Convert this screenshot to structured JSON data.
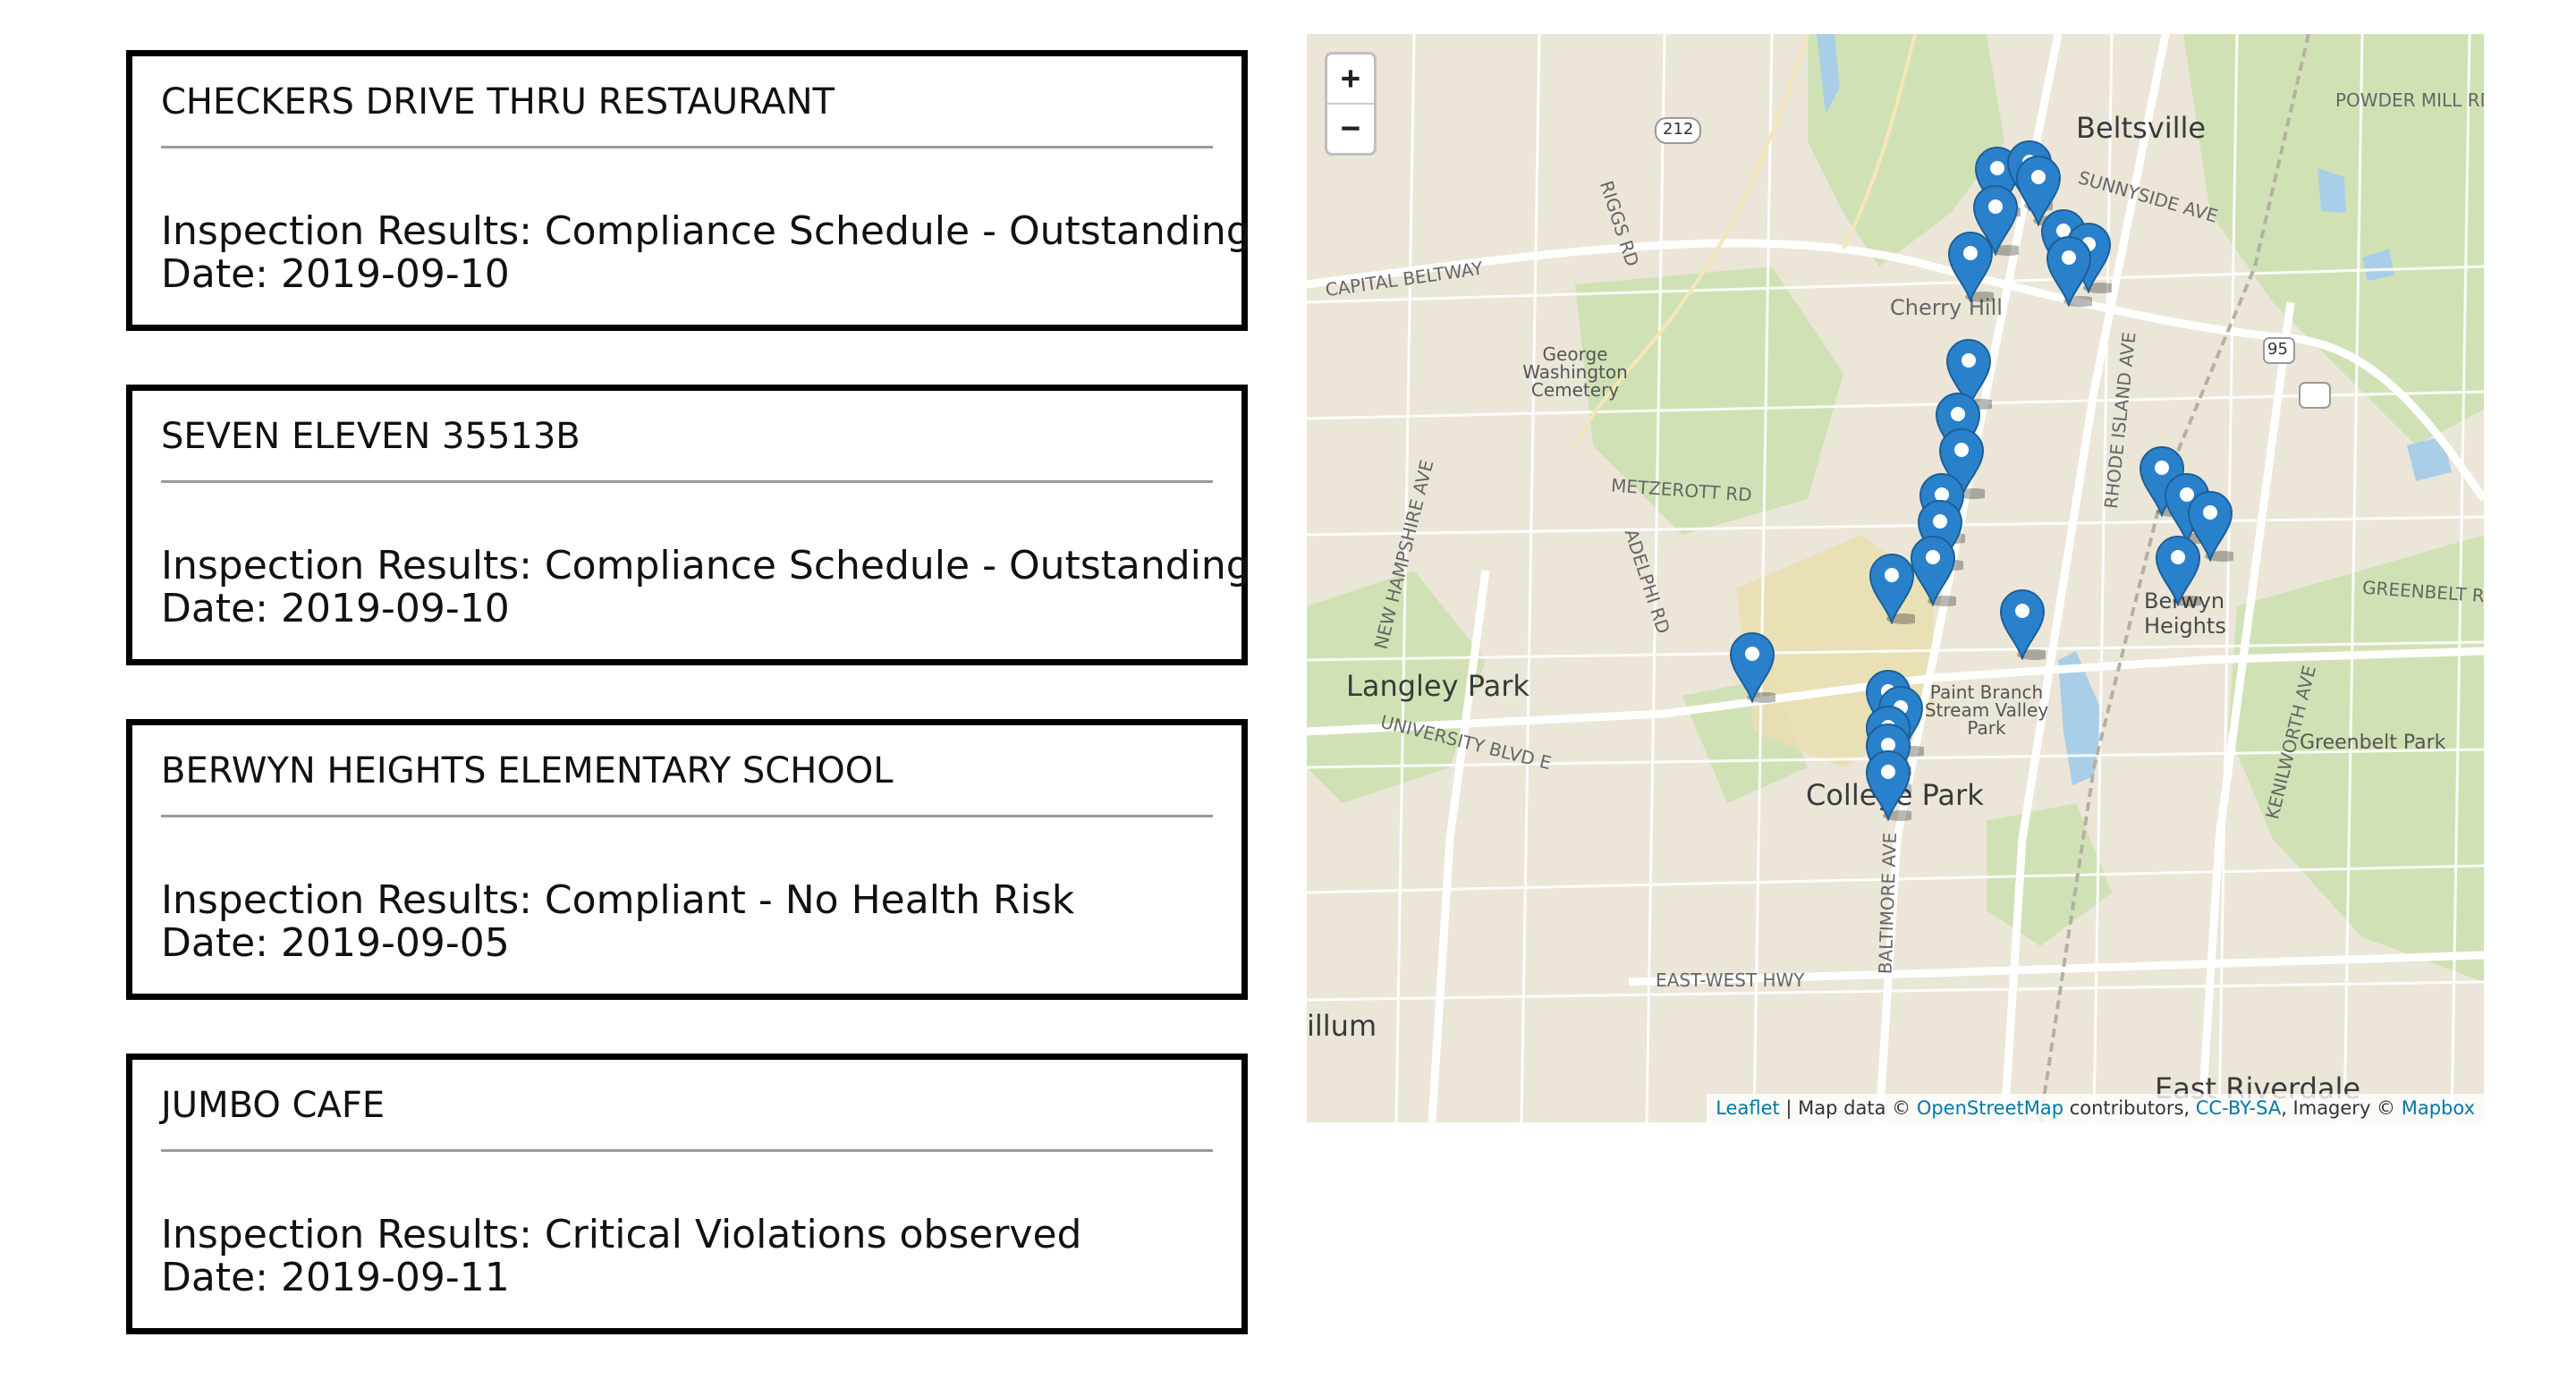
{
  "inspections": [
    {
      "name": "CHECKERS DRIVE THRU RESTAURANT",
      "result": "Inspection Results: Compliance Schedule - Outstanding",
      "date": "Date: 2019-09-10"
    },
    {
      "name": "SEVEN ELEVEN 35513B",
      "result": "Inspection Results: Compliance Schedule - Outstanding",
      "date": "Date: 2019-09-10"
    },
    {
      "name": "BERWYN HEIGHTS ELEMENTARY SCHOOL",
      "result": "Inspection Results: Compliant - No Health Risk",
      "date": "Date: 2019-09-05"
    },
    {
      "name": "JUMBO CAFE",
      "result": "Inspection Results: Critical Violations observed",
      "date": "Date: 2019-09-11"
    }
  ],
  "map": {
    "zoom_in": "+",
    "zoom_out": "−",
    "places": {
      "beltsville": "Beltsville",
      "langley_park": "Langley Park",
      "college_park": "College Park",
      "berwyn_heights": "Berwyn Heights",
      "east_riverdale": "East Riverdale",
      "hillum": "illum",
      "george_washington_cemetery": "George Washington Cemetery",
      "cherry_hill": "Cherry Hill",
      "paint_branch_park": "Paint Branch Stream Valley Park",
      "greenbelt_park": "Greenbelt Park",
      "powder_mill_rd": "POWDER MILL RD",
      "capital_beltway": "CAPITAL BELTWAY",
      "metzerott_rd": "METZEROTT RD",
      "rhode_island_ave": "RHODE ISLAND AVE",
      "baltimore_ave": "BALTIMORE AVE",
      "east_west_hwy": "EAST-WEST HWY",
      "university_blvd": "UNIVERSITY BLVD E",
      "new_hampshire_ave": "NEW HAMPSHIRE AVE",
      "kenilworth_ave": "KENILWORTH AVE",
      "greenbelt_rd": "GREENBELT RD",
      "sunnyside_ave": "SUNNYSIDE AVE",
      "adelphi_rd": "ADELPHI RD",
      "riggs_rd": "RIGGS RD",
      "route_212": "212",
      "route_95": "95"
    },
    "attribution": {
      "leaflet": "Leaflet",
      "sep1": " | Map data © ",
      "osm": "OpenStreetMap",
      "sep2": " contributors, ",
      "license": "CC-BY-SA",
      "sep3": ", Imagery © ",
      "imagery": "Mapbox"
    },
    "colors": {
      "marker": "#2a81cb",
      "park": "#c9dfae",
      "water": "#a9cfe8",
      "road": "#ffffff"
    }
  }
}
